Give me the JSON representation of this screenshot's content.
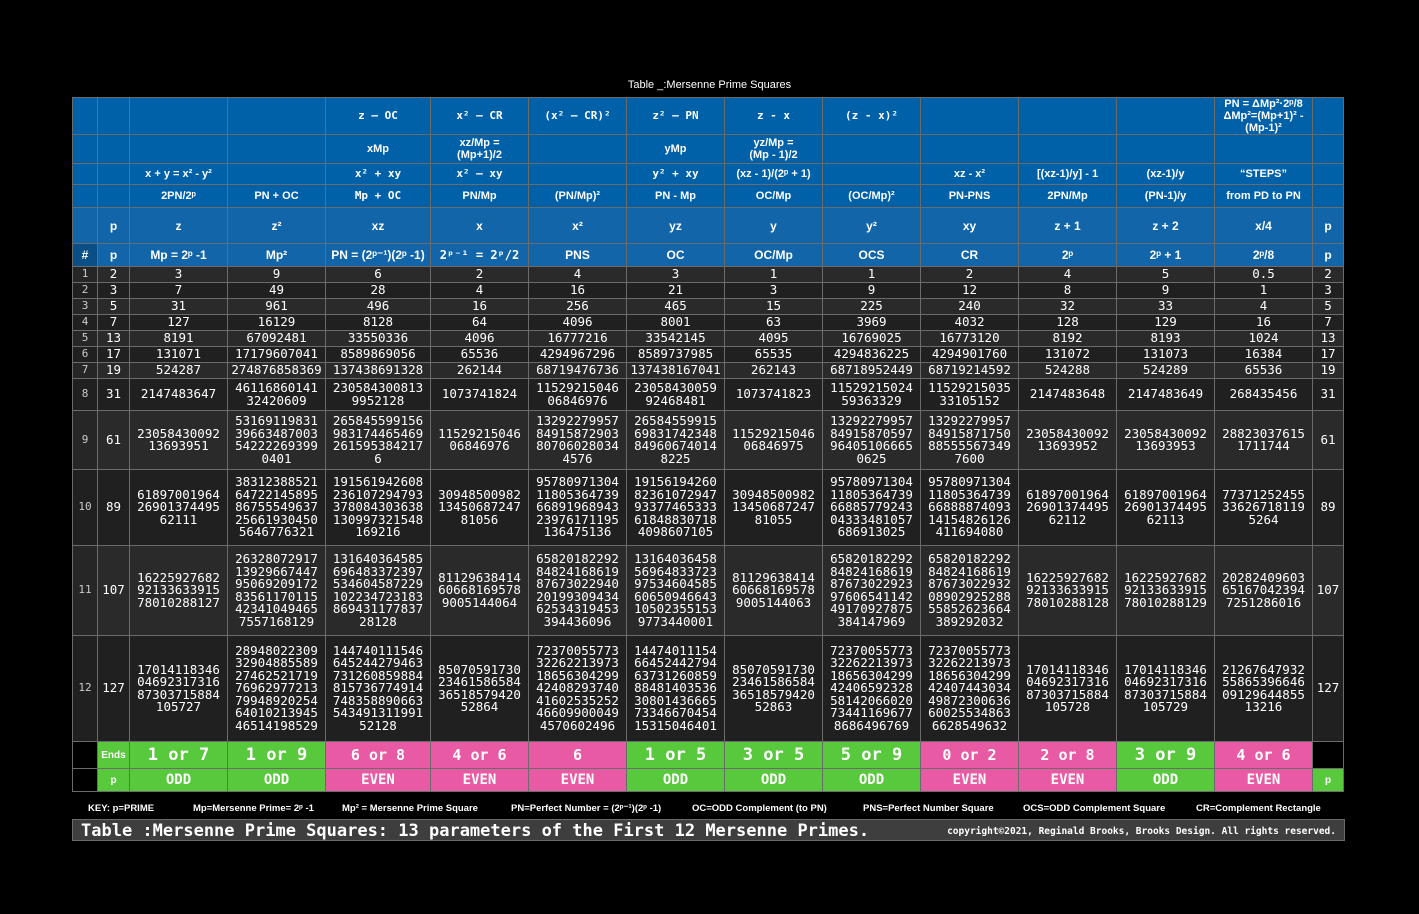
{
  "top_title": "Table _:Mersenne Prime Squares",
  "header_rows": [
    [
      "",
      "",
      "",
      "",
      "z – OC",
      "x² – CR",
      "(x² – CR)²",
      "z² – PN",
      "z - x",
      "(z - x)²",
      "",
      "",
      "",
      "PN = ΔMp²·2ᵖ/8\nΔMp²=(Mp+1)² -\n(Mp-1)²",
      ""
    ],
    [
      "",
      "",
      "",
      "",
      "xMp",
      "xz/Mp =\n(Mp+1)/2",
      "",
      "yMp",
      "yz/Mp =\n(Mp - 1)/2",
      "",
      "",
      "",
      "",
      "",
      ""
    ],
    [
      "",
      "",
      "x + y = x² - y²",
      "",
      "x² + xy",
      "x² – xy",
      "",
      "y² + xy",
      "(xz - 1)/(2ᵖ + 1)",
      "",
      "xz - x²",
      "[(xz-1)/y] - 1",
      "(xz-1)/y",
      "“STEPS”",
      ""
    ],
    [
      "",
      "",
      "2PN/2ᵖ",
      "PN + OC",
      "Mp + OC",
      "PN/Mp",
      "(PN/Mp)²",
      "PN - Mp",
      "OC/Mp",
      "(OC/Mp)²",
      "PN-PNS",
      "2PN/Mp",
      "(PN-1)/y",
      "from PD to PN",
      ""
    ],
    [
      "",
      "p",
      "z",
      "z²",
      "xz",
      "x",
      "x²",
      "yz",
      "y",
      "y²",
      "xy",
      "z + 1",
      "z + 2",
      "x/4",
      "p"
    ],
    [
      "#",
      "p",
      "Mp = 2ᵖ -1",
      "Mp²",
      "PN = (2ᵖ⁻¹)(2ᵖ -1)",
      "2ᵖ⁻¹ = 2ᵖ/2",
      "PNS",
      "OC",
      "OC/Mp",
      "OCS",
      "CR",
      "2ᵖ",
      "2ᵖ + 1",
      "2ᵖ/8",
      "p"
    ]
  ],
  "rows": [
    [
      "1",
      "2",
      "3",
      "9",
      "6",
      "2",
      "4",
      "3",
      "1",
      "1",
      "2",
      "4",
      "5",
      "0.5",
      "2"
    ],
    [
      "2",
      "3",
      "7",
      "49",
      "28",
      "4",
      "16",
      "21",
      "3",
      "9",
      "12",
      "8",
      "9",
      "1",
      "3"
    ],
    [
      "3",
      "5",
      "31",
      "961",
      "496",
      "16",
      "256",
      "465",
      "15",
      "225",
      "240",
      "32",
      "33",
      "4",
      "5"
    ],
    [
      "4",
      "7",
      "127",
      "16129",
      "8128",
      "64",
      "4096",
      "8001",
      "63",
      "3969",
      "4032",
      "128",
      "129",
      "16",
      "7"
    ],
    [
      "5",
      "13",
      "8191",
      "67092481",
      "33550336",
      "4096",
      "16777216",
      "33542145",
      "4095",
      "16769025",
      "16773120",
      "8192",
      "8193",
      "1024",
      "13"
    ],
    [
      "6",
      "17",
      "131071",
      "17179607041",
      "8589869056",
      "65536",
      "4294967296",
      "8589737985",
      "65535",
      "4294836225",
      "4294901760",
      "131072",
      "131073",
      "16384",
      "17"
    ],
    [
      "7",
      "19",
      "524287",
      "274876858369",
      "137438691328",
      "262144",
      "68719476736",
      "137438167041",
      "262143",
      "68718952449",
      "68719214592",
      "524288",
      "524289",
      "65536",
      "19"
    ],
    [
      "8",
      "31",
      "2147483647",
      "46116860141\n32420609",
      "230584300813\n9952128",
      "1073741824",
      "11529215046\n06846976",
      "23058430059\n92468481",
      "1073741823",
      "11529215024\n59363329",
      "11529215035\n33105152",
      "2147483648",
      "2147483649",
      "268435456",
      "31"
    ],
    [
      "9",
      "61",
      "23058430092\n13693951",
      "53169119831\n39663487003\n54222269399\n0401",
      "265845599156\n983174465469\n261595384217\n6",
      "11529215046\n06846976",
      "13292279957\n84915872903\n80706028034\n4576",
      "26584559915\n69831742348\n84960674014\n8225",
      "11529215046\n06846975",
      "13292279957\n84915870597\n96405106665\n0625",
      "13292279957\n84915871750\n88555567349\n7600",
      "23058430092\n13693952",
      "23058430092\n13693953",
      "28823037615\n1711744",
      "61"
    ],
    [
      "10",
      "89",
      "61897001964\n26901374495\n62111",
      "38312388521\n64722145895\n86755549637\n25661930450\n5646776321",
      "191561942608\n236107294793\n378084303638\n130997321548\n169216",
      "30948500982\n13450687247\n81056",
      "95780971304\n11805364739\n66891968943\n23976171195\n136475136",
      "19156194260\n82361072947\n93377465333\n61848830718\n4098607105",
      "30948500982\n13450687247\n81055",
      "95780971304\n11805364739\n66885779243\n04333481057\n686913025",
      "95780971304\n11805364739\n66888874093\n14154826126\n411694080",
      "61897001964\n26901374495\n62112",
      "61897001964\n26901374495\n62113",
      "77371252455\n33626718119\n5264",
      "89"
    ],
    [
      "11",
      "107",
      "16225927682\n92133633915\n78010288127",
      "26328072917\n13929667447\n95069209172\n83561170115\n42341049465\n7557168129",
      "131640364585\n696483372397\n534604587229\n102234723183\n869431177837\n28128",
      "81129638414\n60668169578\n9005144064",
      "65820182292\n84824168619\n87673022940\n20199309434\n62534319453\n394436096",
      "13164036458\n56964833723\n97534604585\n60650946643\n10502355153\n9773440001",
      "81129638414\n60668169578\n9005144063",
      "65820182292\n84824168619\n87673022923\n97606541142\n49170927875\n384147969",
      "65820182292\n84824168619\n87673022932\n08902925288\n55852623664\n389292032",
      "16225927682\n92133633915\n78010288128",
      "16225927682\n92133633915\n78010288129",
      "20282409603\n65167042394\n7251286016",
      "107"
    ],
    [
      "12",
      "127",
      "17014118346\n04692317316\n87303715884\n105727",
      "28948022309\n32904885589\n27462521719\n76962977213\n79948920254\n64010213945\n46514198529",
      "144740111546\n645244279463\n731260859884\n815736774914\n748358890663\n543491311991\n52128",
      "85070591730\n23461586584\n36518579420\n52864",
      "72370055773\n32262213973\n18656304299\n42408293740\n41602535252\n46609900049\n4570602496",
      "14474011154\n66452442794\n63731260859\n88481403536\n30801436665\n73346670454\n15315046401",
      "85070591730\n23461586584\n36518579420\n52863",
      "72370055773\n32262213973\n18656304299\n42406592328\n58142066020\n73441169677\n8686496769",
      "72370055773\n32262213973\n18656304299\n42407443034\n49872300636\n60025534863\n6628549632",
      "17014118346\n04692317316\n87303715884\n105728",
      "17014118346\n04692317316\n87303715884\n105729",
      "21267647932\n55865396646\n09129644855\n13216",
      "127"
    ]
  ],
  "ends_row": [
    "",
    "Ends",
    "1 or 7",
    "1 or 9",
    "6 or 8",
    "4 or 6",
    "6",
    "1 or 5",
    "3 or 5",
    "5 or 9",
    "0 or 2",
    "2 or 8",
    "3 or 9",
    "4 or 6",
    ""
  ],
  "parity_row": [
    "",
    "p",
    "ODD",
    "ODD",
    "EVEN",
    "EVEN",
    "EVEN",
    "ODD",
    "ODD",
    "ODD",
    "EVEN",
    "EVEN",
    "ODD",
    "EVEN",
    "p"
  ],
  "colors": {
    "green": "#58c93c",
    "pink": "#e85aa3",
    "blue": "#0060a8"
  },
  "key": [
    "KEY:  p=PRIME",
    "Mp=Mersenne Prime= 2ᵖ -1",
    "Mp² = Mersenne Prime Square",
    "PN=Perfect Number = (2ᵖ⁻¹)(2ᵖ -1)",
    "OC=ODD Complement (to PN)",
    "PNS=Perfect Number Square",
    "OCS=ODD Complement Square",
    "CR=Complement Rectangle"
  ],
  "bottom_title": "Table  :Mersenne Prime Squares: 13 parameters of the First 12 Mersenne Primes.",
  "copyright": "copyright©2021, Reginald Brooks, Brooks Design. All rights reserved."
}
